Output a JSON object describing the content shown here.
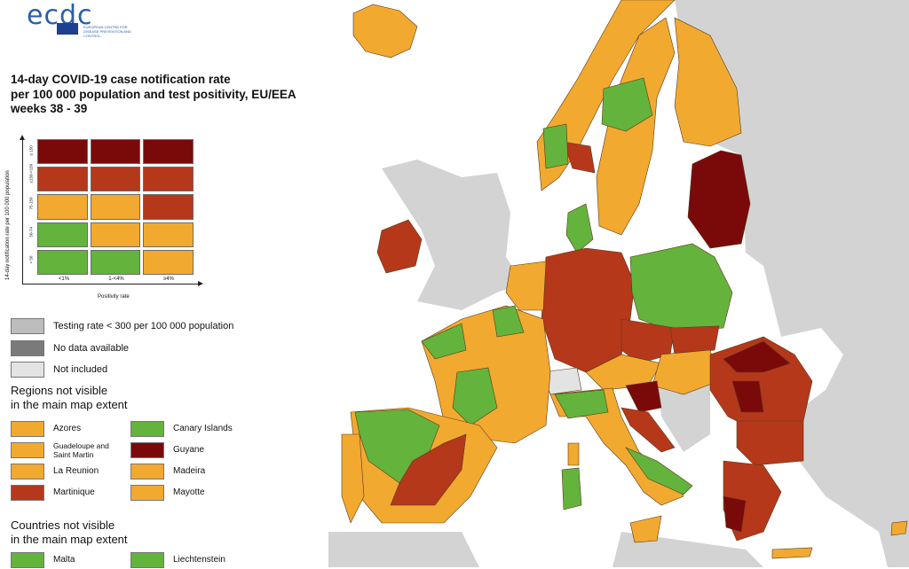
{
  "logo": {
    "text": "ecdc",
    "subtitle": "EUROPEAN CENTRE FOR DISEASE PREVENTION AND CONTROL"
  },
  "title": {
    "line1": "14-day COVID-19 case notification rate",
    "line2": "per 100 000 population and test positivity, EU/EEA",
    "line3": "weeks 38 - 39"
  },
  "colors": {
    "dark_red": "#7a0a0a",
    "red": "#b5381b",
    "orange": "#f2a930",
    "green": "#63b33c",
    "grey": "#bdbdbd",
    "dark_grey": "#7a7a7a",
    "light_grey": "#e3e3e3",
    "sea": "#ffffff",
    "non_eu_land": "#d3d3d3"
  },
  "matrix": {
    "y_axis_label": "14-day notification rate per 100 000 population",
    "y_ticks": [
      "≥ 150",
      "≥150-<150",
      "75-150",
      "50-74",
      "< 50"
    ],
    "x_axis_label": "Positivity rate",
    "x_ticks": [
      "<1%",
      "1-<4%",
      "≥4%"
    ],
    "cells": [
      [
        "dark_red",
        "dark_red",
        "dark_red"
      ],
      [
        "red",
        "red",
        "red"
      ],
      [
        "orange",
        "orange",
        "red"
      ],
      [
        "green",
        "orange",
        "orange"
      ],
      [
        "green",
        "green",
        "orange"
      ]
    ]
  },
  "legend": {
    "testing": "Testing rate < 300 per 100 000 population",
    "no_data": "No data available",
    "not_included": "Not included"
  },
  "regions": {
    "heading_line1": "Regions not visible",
    "heading_line2": "in the main map extent",
    "items": [
      {
        "label": "Azores",
        "color": "orange"
      },
      {
        "label": "Canary Islands",
        "color": "green"
      },
      {
        "label": "Guadeloupe and Saint Martin",
        "color": "orange"
      },
      {
        "label": "Guyane",
        "color": "dark_red"
      },
      {
        "label": "La Reunion",
        "color": "orange"
      },
      {
        "label": "Madeira",
        "color": "orange"
      },
      {
        "label": "Martinique",
        "color": "red"
      },
      {
        "label": "Mayotte",
        "color": "orange"
      }
    ]
  },
  "countries": {
    "heading_line1": "Countries not visible",
    "heading_line2": "in the main map extent",
    "items": [
      {
        "label": "Malta",
        "color": "green"
      },
      {
        "label": "Liechtenstein",
        "color": "green"
      }
    ]
  }
}
